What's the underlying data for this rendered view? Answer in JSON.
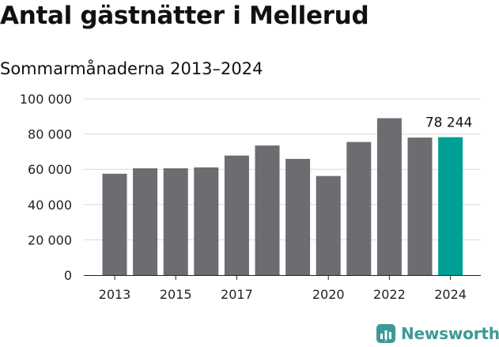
{
  "header": {
    "title": "Antal gästnätter i Mellerud",
    "subtitle": "Sommarmånaderna 2013–2024"
  },
  "brand": {
    "name": "Newsworthy",
    "icon": "newsworthy-logo-icon",
    "color": "#3d9a96"
  },
  "chart_data": {
    "type": "bar",
    "title": "Antal gästnätter i Mellerud",
    "subtitle": "Sommarmånaderna 2013–2024",
    "xlabel": "",
    "ylabel": "",
    "categories": [
      "2013",
      "2014",
      "2015",
      "2016",
      "2017",
      "2018",
      "2019",
      "2020",
      "2021",
      "2022",
      "2023",
      "2024"
    ],
    "values": [
      57500,
      60600,
      60600,
      61100,
      67800,
      73500,
      65900,
      56200,
      75500,
      89000,
      78000,
      78244
    ],
    "x_tick_labels": [
      "2013",
      "2015",
      "2017",
      "2020",
      "2022",
      "2024"
    ],
    "y_ticks": [
      0,
      20000,
      40000,
      60000,
      80000,
      100000
    ],
    "y_tick_labels": [
      "0",
      "20 000",
      "40 000",
      "60 000",
      "80 000",
      "100 000"
    ],
    "ylim": [
      0,
      100000
    ],
    "grid": "horizontal",
    "bar_color": "#6d6c71",
    "highlight_color": "#00a096",
    "highlight_category": "2024",
    "annotation": {
      "category": "2024",
      "text": "78 244"
    }
  }
}
